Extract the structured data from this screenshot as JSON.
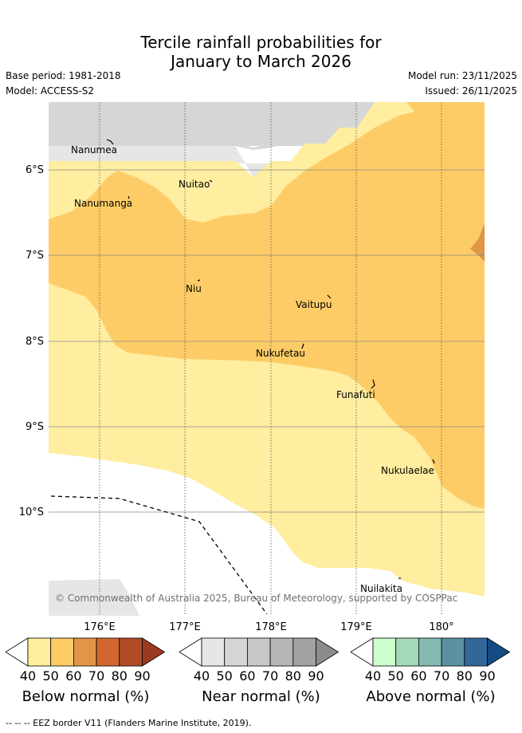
{
  "title": {
    "line1": "Tercile rainfall probabilities for",
    "line2": "January to March 2026"
  },
  "meta": {
    "base_period": "Base period: 1981-2018",
    "model": "Model: ACCESS-S2",
    "model_run": "Model run: 23/11/2025",
    "issued": "Issued: 26/11/2025"
  },
  "axes": {
    "lat_labels": [
      "6°S",
      "7°S",
      "8°S",
      "9°S",
      "10°S"
    ],
    "lon_labels": [
      "176°E",
      "177°E",
      "178°E",
      "179°E",
      "180°"
    ]
  },
  "places": [
    "Nanumea",
    "Nuitao",
    "Nanumanga",
    "Niu",
    "Vaitupu",
    "Nukufetau",
    "Funafuti",
    "Nukulaelae",
    "Nuilakita"
  ],
  "copyright": "© Commonwealth of Australia 2025, Bureau of Meteorology, supported by COSPPac",
  "colorbars": {
    "ticks": [
      "40",
      "50",
      "60",
      "70",
      "80",
      "90"
    ],
    "below": {
      "title": "Below normal (%)",
      "colors": [
        "#ffffff",
        "#ffeda0",
        "#fecc66",
        "#e09548",
        "#d2682f",
        "#b04b28",
        "#9b3a23"
      ]
    },
    "near": {
      "title": "Near normal (%)",
      "colors": [
        "#ffffff",
        "#e6e6e6",
        "#d6d6d6",
        "#c8c8c8",
        "#b6b6b6",
        "#a2a2a2",
        "#8c8c8c"
      ]
    },
    "above": {
      "title": "Above normal (%)",
      "colors": [
        "#ffffff",
        "#ccffcc",
        "#a3d9b8",
        "#84b9b3",
        "#5a92a0",
        "#336699",
        "#154b82"
      ]
    }
  },
  "footer": "--  --  -- EEZ border V11 (Flanders Marine Institute, 2019)."
}
